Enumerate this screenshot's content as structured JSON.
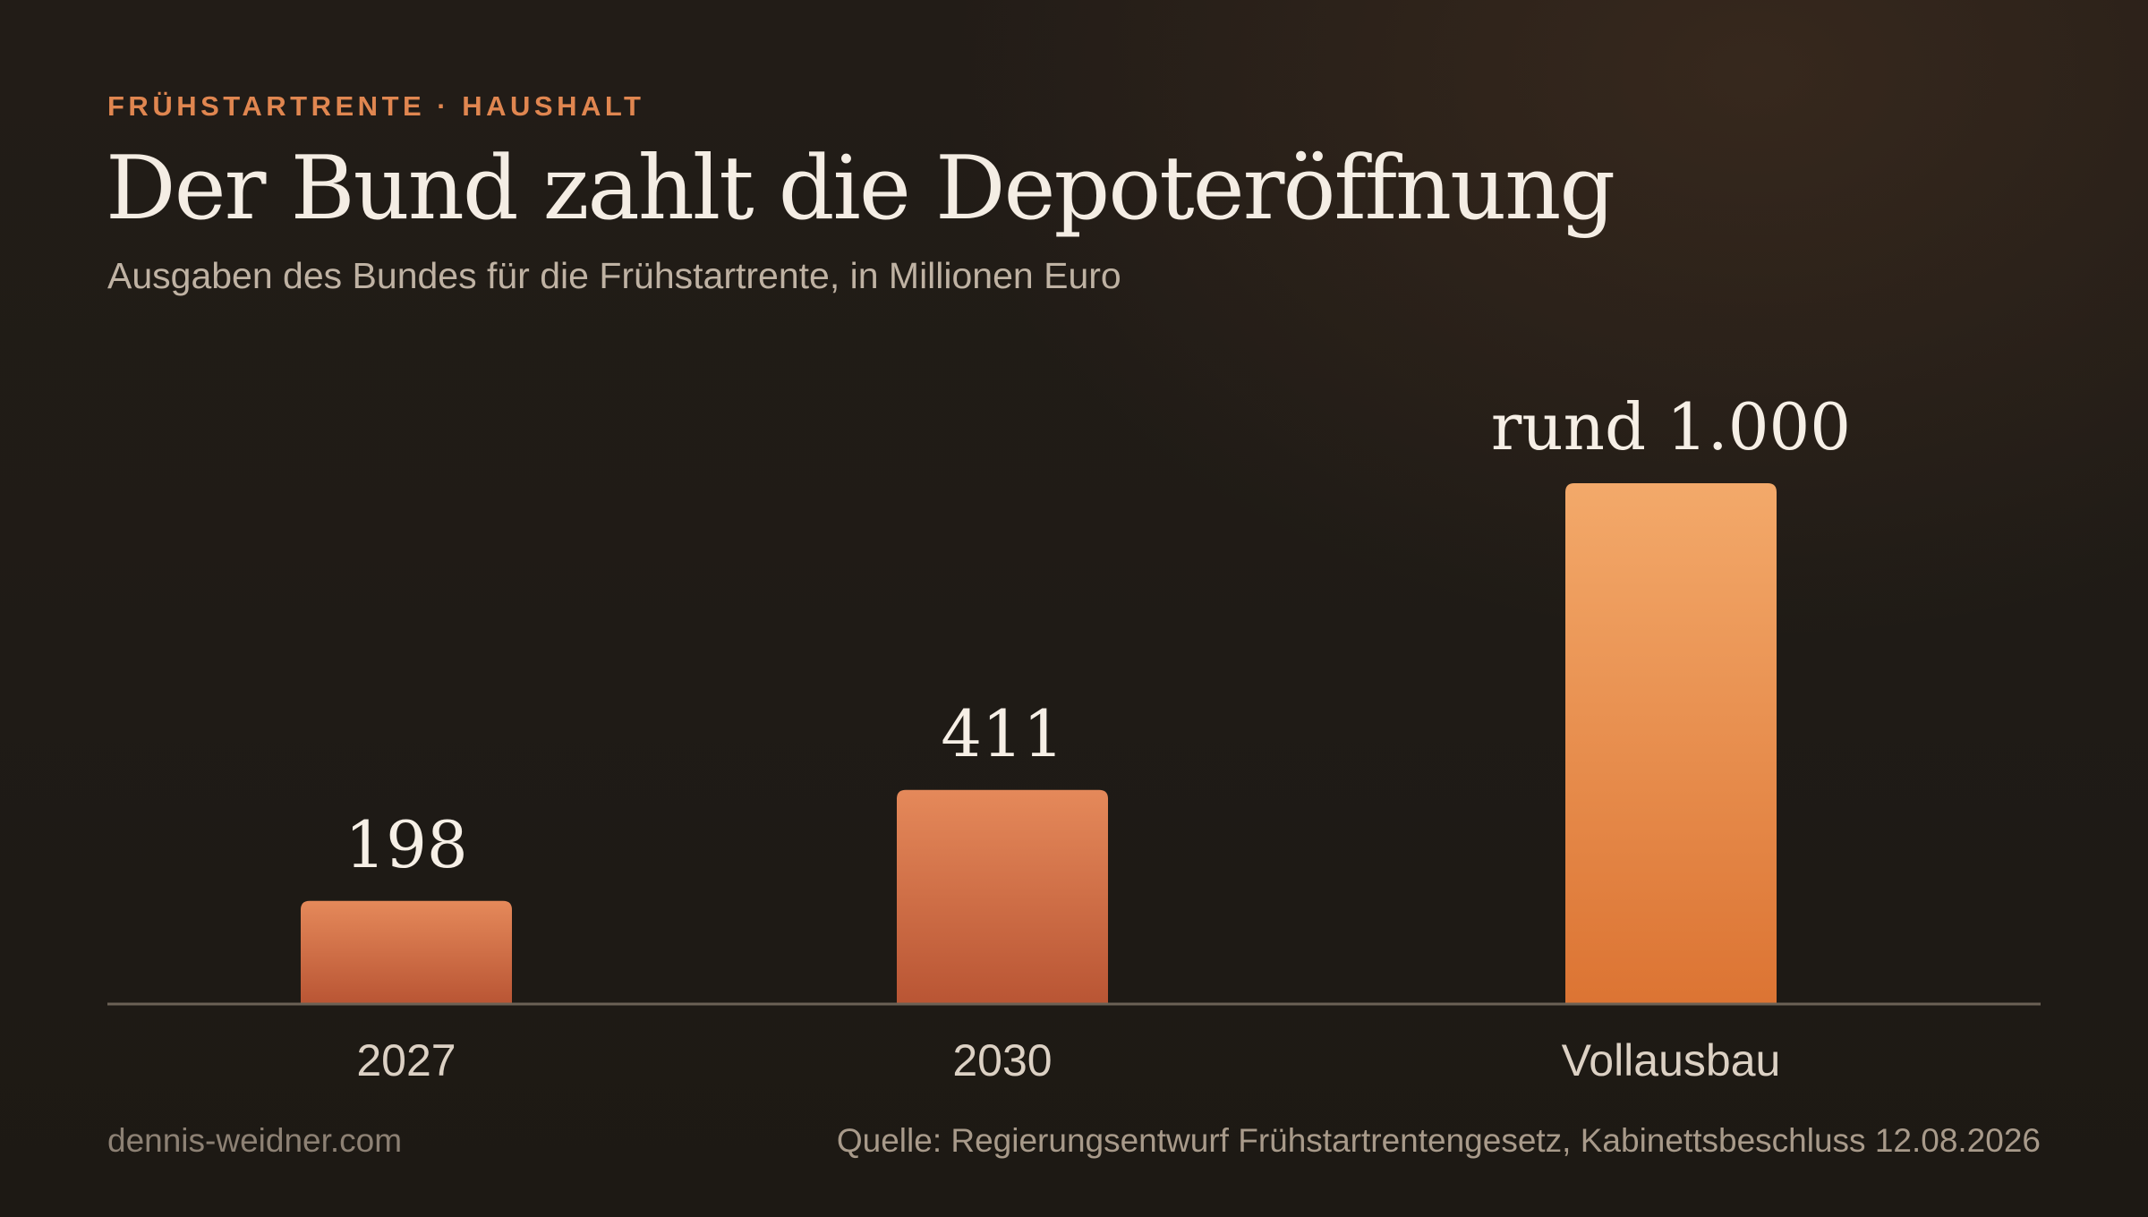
{
  "header": {
    "kicker": "FRÜHSTARTRENTE · HAUSHALT",
    "title": "Der Bund zahlt die Depoteröffnung",
    "subtitle": "Ausgaben des Bundes für die Frühstartrente, in Millionen Euro"
  },
  "chart_data": {
    "type": "bar",
    "title": "Der Bund zahlt die Depoteröffnung",
    "subtitle": "Ausgaben des Bundes für die Frühstartrente, in Millionen Euro",
    "categories": [
      "2027",
      "2030",
      "Vollausbau"
    ],
    "values": [
      198,
      411,
      1000
    ],
    "value_labels": [
      "198",
      "411",
      "rund 1.000"
    ],
    "xlabel": "",
    "ylabel": "",
    "ylim": [
      0,
      1000
    ],
    "grid": false,
    "legend": "none",
    "colors": {
      "bar_top": "#e5895a",
      "bar_bottom": "#b95534",
      "highlight_top": "#f3a96a",
      "highlight_bottom": "#dc7433",
      "baseline": "#6b6155"
    }
  },
  "footer": {
    "site": "dennis-weidner.com",
    "source": "Quelle: Regierungsentwurf Frühstartrentengesetz, Kabinettsbeschluss 12.08.2026"
  }
}
